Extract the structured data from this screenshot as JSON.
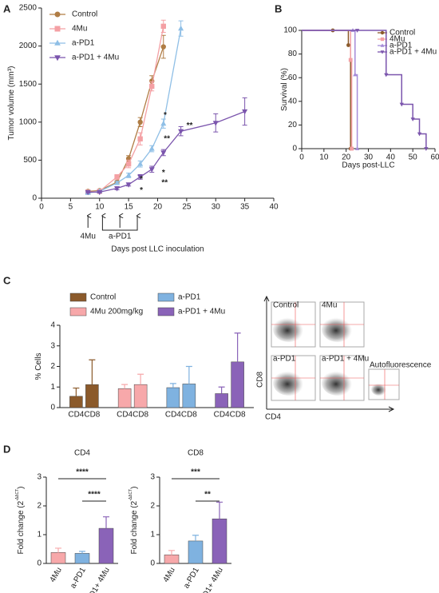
{
  "panels": [
    "A",
    "B",
    "C",
    "D"
  ],
  "chart_data": [
    {
      "type": "line",
      "y_label": "Tumor volume (mm³)",
      "x_label": "Days post LLC inoculation",
      "xlim": [
        0,
        40
      ],
      "xticks": [
        0,
        5,
        10,
        15,
        20,
        25,
        30,
        35,
        40
      ],
      "ylim": [
        0,
        2500
      ],
      "yticks": [
        0,
        500,
        1000,
        1500,
        2000,
        2500
      ],
      "legend": "upper left",
      "series": [
        {
          "name": "Control",
          "color": "#b07d45",
          "marker": "circle",
          "x": [
            8,
            10,
            13,
            15,
            17,
            19,
            21
          ],
          "values": [
            90,
            100,
            210,
            520,
            1000,
            1540,
            1990
          ],
          "errors": [
            10,
            10,
            20,
            40,
            60,
            70,
            150
          ]
        },
        {
          "name": "4Mu",
          "color": "#f4a0a4",
          "marker": "square",
          "x": [
            8,
            10,
            13,
            15,
            17,
            19,
            21
          ],
          "values": [
            80,
            90,
            280,
            450,
            780,
            1470,
            2260
          ],
          "errors": [
            10,
            10,
            30,
            50,
            80,
            60,
            80
          ]
        },
        {
          "name": "a-PD1",
          "color": "#8fbfe6",
          "marker": "triangle",
          "x": [
            8,
            10,
            13,
            15,
            17,
            19,
            21,
            24
          ],
          "values": [
            70,
            90,
            200,
            300,
            450,
            650,
            980,
            2230
          ],
          "errors": [
            10,
            10,
            20,
            30,
            40,
            40,
            60,
            100
          ]
        },
        {
          "name": "a-PD1 + 4Mu",
          "color": "#7b55ad",
          "marker": "triangle-down",
          "x": [
            8,
            10,
            13,
            15,
            17,
            19,
            21,
            24,
            30,
            35
          ],
          "values": [
            80,
            80,
            130,
            180,
            280,
            380,
            600,
            880,
            990,
            1140
          ],
          "errors": [
            10,
            10,
            20,
            20,
            30,
            40,
            40,
            60,
            120,
            180
          ]
        }
      ],
      "annotations": [
        {
          "text": "*",
          "x": 21.3,
          "y": 1090,
          "color": "#8b5a2b"
        },
        {
          "text": "**",
          "x": 21.6,
          "y": 780,
          "color": "#5b9bd5"
        },
        {
          "text": "**",
          "x": 25.5,
          "y": 950,
          "color": "#5b9bd5"
        },
        {
          "text": "*",
          "x": 21,
          "y": 330,
          "color": "#8b5a2b"
        },
        {
          "text": "**",
          "x": 21.2,
          "y": 200,
          "color": "#f08a90"
        },
        {
          "text": "*",
          "x": 17.2,
          "y": 250,
          "color": "#8b5a2b"
        },
        {
          "text": "*",
          "x": 17.2,
          "y": 100,
          "color": "#f08a90"
        }
      ],
      "treatments": [
        {
          "label": "4Mu",
          "days": [
            8
          ]
        },
        {
          "label": "a-PD1",
          "days": [
            10.5,
            13.5,
            16.5
          ]
        }
      ]
    },
    {
      "type": "step",
      "y_label": "Survival (%)",
      "x_label": "Days post-LLC",
      "xlim": [
        0,
        60
      ],
      "xticks": [
        0,
        10,
        20,
        30,
        40,
        50,
        60
      ],
      "ylim": [
        0,
        100
      ],
      "yticks": [
        0,
        20,
        40,
        60,
        80,
        100
      ],
      "legend": "upper right",
      "series": [
        {
          "name": "Control",
          "color": "#8b5a2b",
          "marker": "circle",
          "x": [
            0,
            14,
            21,
            22
          ],
          "values": [
            100,
            100,
            87.5,
            0
          ]
        },
        {
          "name": "4Mu",
          "color": "#f4a0a4",
          "marker": "square",
          "x": [
            0,
            22,
            22.5
          ],
          "values": [
            100,
            75,
            0
          ]
        },
        {
          "name": "a-PD1",
          "color": "#a58bd8",
          "marker": "triangle",
          "x": [
            0,
            23,
            24,
            25
          ],
          "values": [
            100,
            100,
            62.5,
            0
          ]
        },
        {
          "name": "a-PD1 + 4Mu",
          "color": "#7b55ad",
          "marker": "triangle-down",
          "x": [
            0,
            25,
            38,
            45,
            50,
            53,
            56
          ],
          "values": [
            100,
            100,
            62.5,
            37.5,
            25,
            12.5,
            0
          ]
        }
      ]
    },
    {
      "type": "grouped-bar",
      "y_label": "% Cells",
      "categories": [
        "CD4",
        "CD8"
      ],
      "ylim": [
        0,
        4
      ],
      "yticks": [
        0,
        1,
        2,
        3,
        4
      ],
      "series": [
        {
          "name": "Control",
          "color": "#8b5a2b",
          "values": [
            0.55,
            1.12
          ],
          "errors": [
            0.4,
            1.2
          ]
        },
        {
          "name": "4Mu 200mg/kg",
          "color": "#f7a8aa",
          "values": [
            0.92,
            1.12
          ],
          "errors": [
            0.2,
            0.5
          ]
        },
        {
          "name": "a-PD1",
          "color": "#7fb2e0",
          "values": [
            0.97,
            1.15
          ],
          "errors": [
            0.2,
            0.85
          ]
        },
        {
          "name": "a-PD1 + 4Mu",
          "color": "#8a63b8",
          "values": [
            0.68,
            2.22
          ],
          "errors": [
            0.32,
            1.4
          ]
        }
      ]
    },
    {
      "type": "bar",
      "title": "CD4",
      "y_label": "Fold change (2",
      "y_label_sup": "-ΔΔCT",
      "y_label_end": ")",
      "categories": [
        "4Mu",
        "a-PD1",
        "a-PD1+ 4Mu"
      ],
      "colors": [
        "#f7a8aa",
        "#7fb2e0",
        "#8a63b8"
      ],
      "values": [
        0.38,
        0.35,
        1.22
      ],
      "errors": [
        0.15,
        0.07,
        0.4
      ],
      "ylim": [
        0,
        3
      ],
      "yticks": [
        0,
        1,
        2,
        3
      ],
      "comparisons": [
        {
          "from": 0,
          "to": 2,
          "label": "****"
        },
        {
          "from": 1,
          "to": 2,
          "label": "****"
        }
      ]
    },
    {
      "type": "bar",
      "title": "CD8",
      "y_label": "Fold change (2",
      "y_label_sup": "-ΔΔCT",
      "y_label_end": ")",
      "categories": [
        "4Mu",
        "a-PD1",
        "a-PD1+ 4Mu"
      ],
      "colors": [
        "#f7a8aa",
        "#7fb2e0",
        "#8a63b8"
      ],
      "values": [
        0.3,
        0.78,
        1.55
      ],
      "errors": [
        0.15,
        0.2,
        0.58
      ],
      "ylim": [
        0,
        3
      ],
      "yticks": [
        0,
        1,
        2,
        3
      ],
      "comparisons": [
        {
          "from": 0,
          "to": 2,
          "label": "***"
        },
        {
          "from": 1,
          "to": 2,
          "label": "**"
        }
      ]
    }
  ],
  "flow": {
    "labels": [
      "Control",
      "4Mu",
      "a-PD1",
      "a-PD1 + 4Mu",
      "Autofluorescence"
    ],
    "y_axis": "CD8",
    "x_axis": "CD4"
  }
}
